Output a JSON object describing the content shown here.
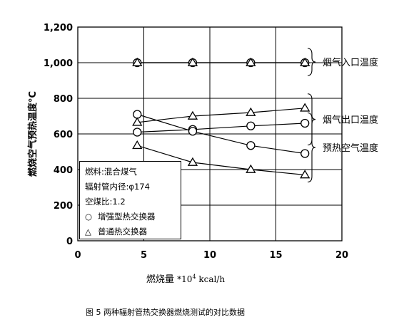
{
  "chart_data": {
    "type": "scatter",
    "xlim": [
      0,
      20
    ],
    "ylim": [
      0,
      1200
    ],
    "x_ticks": [
      "0",
      "5",
      "10",
      "15",
      "20"
    ],
    "y_ticks": [
      "0",
      "200",
      "400",
      "600",
      "800",
      "1,000",
      "1,200"
    ],
    "ylabel": "燃烧空气预热温度°C",
    "xlabel_main": "燃烧量",
    "xlabel_unit_prefix": "*10",
    "xlabel_unit_exp": "4",
    "xlabel_unit_suffix": " kcal/h",
    "grid": true,
    "groups": [
      {
        "label": "烟气入口温度"
      },
      {
        "label": "烟气出口温度"
      },
      {
        "label": "预热空气温度"
      }
    ],
    "series": [
      {
        "marker": "circle",
        "groups": [
          {
            "x": [
              4.5,
              8.7,
              13.1,
              17.2
            ],
            "y": [
              1000,
              1000,
              1000,
              1000
            ]
          },
          {
            "x": [
              4.5,
              8.7,
              13.1,
              17.2
            ],
            "y": [
              610,
              625,
              645,
              660
            ]
          },
          {
            "x": [
              4.5,
              8.7,
              13.1,
              17.2
            ],
            "y": [
              710,
              615,
              535,
              490
            ]
          }
        ]
      },
      {
        "marker": "triangle",
        "groups": [
          {
            "x": [
              4.5,
              8.7,
              13.1,
              17.2
            ],
            "y": [
              1000,
              1000,
              1000,
              1000
            ]
          },
          {
            "x": [
              4.5,
              8.7,
              13.1,
              17.2
            ],
            "y": [
              665,
              700,
              720,
              745
            ]
          },
          {
            "x": [
              4.5,
              8.7,
              13.1,
              17.2
            ],
            "y": [
              535,
              440,
              400,
              370
            ]
          }
        ]
      }
    ]
  },
  "info": {
    "line1": "燃料:混合煤气",
    "line2": "辐射管内径:φ174",
    "line3": "空煤比:1.2"
  },
  "legend": {
    "circle_symbol": "○",
    "circle_label": "增强型热交换器",
    "triangle_symbol": "△",
    "triangle_label": "普通热交换器"
  },
  "caption": "图 5  两种辐射管热交换器燃烧测试的对比数据"
}
